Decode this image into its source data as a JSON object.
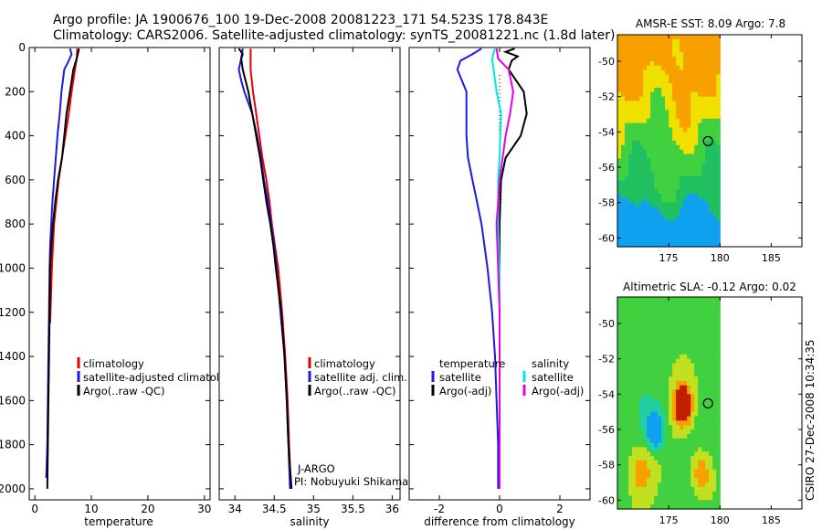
{
  "header": {
    "line1": "Argo profile: JA 1900676_100 19-Dec-2008 20081223_171 54.523S 178.843E",
    "line2": "Climatology: CARS2006. Satellite-adjusted climatology: synTS_20081221.nc (1.8d later)"
  },
  "credit": {
    "float_org": "J-ARGO",
    "pi": "PI: Nobuyuki Shikama",
    "stamp": "CSIRO 27-Dec-2008 10:34:35"
  },
  "colors": {
    "climatology": "#e60000",
    "satellite": "#1a1ae6",
    "argo": "#000000",
    "sat_salinity": "#00e6e6",
    "argo_salinity": "#e600e6"
  },
  "chart_data": [
    {
      "type": "line",
      "id": "temperature",
      "xlabel": "temperature",
      "ylabel": "",
      "xlim": [
        -1,
        31
      ],
      "ylim": [
        2050,
        0
      ],
      "xticks": [
        0,
        10,
        20,
        30
      ],
      "yticks": [
        0,
        200,
        400,
        600,
        800,
        1000,
        1200,
        1400,
        1600,
        1800,
        2000
      ],
      "legend": [
        "climatology",
        "satellite-adjusted climatology",
        "Argo(..raw -QC)"
      ],
      "series": [
        {
          "name": "climatology",
          "color": "climatology",
          "depth": [
            5,
            50,
            100,
            200,
            300,
            400,
            500,
            600,
            700,
            800,
            1000,
            1250
          ],
          "values": [
            7.5,
            7.4,
            7.1,
            6.5,
            6.0,
            5.4,
            4.8,
            4.2,
            3.8,
            3.4,
            3.0,
            2.7
          ]
        },
        {
          "name": "satellite-adjusted climatology",
          "color": "satellite",
          "depth": [
            5,
            30,
            60,
            100,
            200,
            300,
            400,
            500,
            600,
            700,
            800,
            900,
            1000,
            1200,
            1400,
            1600,
            1800,
            1950
          ],
          "values": [
            6.2,
            6.5,
            6.0,
            5.2,
            4.7,
            4.4,
            4.0,
            3.7,
            3.4,
            3.1,
            2.9,
            2.7,
            2.6,
            2.5,
            2.4,
            2.3,
            2.2,
            2.0
          ]
        },
        {
          "name": "Argo(..raw -QC)",
          "color": "argo",
          "depth": [
            5,
            30,
            50,
            100,
            200,
            300,
            400,
            500,
            600,
            700,
            800,
            900,
            1000,
            1200,
            1400,
            1600,
            1800,
            2000
          ],
          "values": [
            7.8,
            7.6,
            7.4,
            6.8,
            6.2,
            5.6,
            5.2,
            4.8,
            4.1,
            3.6,
            3.2,
            2.9,
            2.7,
            2.6,
            2.5,
            2.4,
            2.3,
            2.2
          ]
        }
      ]
    },
    {
      "type": "line",
      "id": "salinity",
      "xlabel": "salinity",
      "ylabel": "",
      "xlim": [
        33.8,
        36.1
      ],
      "ylim": [
        2050,
        0
      ],
      "xticks": [
        34,
        34.5,
        35,
        35.5,
        36
      ],
      "yticks": [
        0,
        200,
        400,
        600,
        800,
        1000,
        1200,
        1400,
        1600,
        1800,
        2000
      ],
      "legend": [
        "climatology",
        "satellite adj. clim.",
        "Argo(..raw -QC)"
      ],
      "series": [
        {
          "name": "climatology",
          "color": "climatology",
          "depth": [
            5,
            50,
            100,
            200,
            300,
            400,
            500,
            600,
            700,
            800,
            900,
            1000,
            1200,
            1400,
            1600,
            1800,
            2000
          ],
          "values": [
            34.2,
            34.2,
            34.2,
            34.23,
            34.27,
            34.31,
            34.35,
            34.4,
            34.44,
            34.47,
            34.51,
            34.55,
            34.6,
            34.64,
            34.67,
            34.69,
            34.71
          ]
        },
        {
          "name": "satellite adj. clim.",
          "color": "satellite",
          "depth": [
            5,
            50,
            100,
            150,
            200,
            300,
            400,
            500,
            600,
            700,
            800,
            900,
            1000,
            1200,
            1400,
            1600,
            1800,
            2000
          ],
          "values": [
            34.1,
            34.08,
            34.05,
            34.08,
            34.12,
            34.22,
            34.28,
            34.33,
            34.37,
            34.42,
            34.46,
            34.5,
            34.53,
            34.58,
            34.63,
            34.66,
            34.68,
            34.7
          ]
        },
        {
          "name": "Argo(..raw -QC)",
          "color": "argo",
          "depth": [
            5,
            30,
            50,
            100,
            200,
            300,
            400,
            500,
            600,
            700,
            800,
            900,
            1000,
            1200,
            1400,
            1600,
            1800,
            2000
          ],
          "values": [
            34.05,
            34.1,
            34.08,
            34.1,
            34.17,
            34.22,
            34.27,
            34.32,
            34.36,
            34.4,
            34.45,
            34.49,
            34.52,
            34.59,
            34.63,
            34.66,
            34.68,
            34.72
          ]
        }
      ]
    },
    {
      "type": "line",
      "id": "difference",
      "xlabel": "difference from climatology",
      "ylabel": "",
      "xlim": [
        -3,
        3
      ],
      "ylim": [
        2050,
        0
      ],
      "xticks": [
        -2,
        0,
        2
      ],
      "yticks": [
        0,
        200,
        400,
        600,
        800,
        1000,
        1200,
        1400,
        1600,
        1800,
        2000
      ],
      "legend_groups": [
        {
          "heading": "temperature",
          "items": [
            "satellite",
            "Argo(-adj)"
          ]
        },
        {
          "heading": "salinity",
          "items": [
            "satellite",
            "Argo(-adj)"
          ]
        }
      ],
      "series": [
        {
          "name": "satellite",
          "group": "temperature",
          "color": "satellite",
          "depth": [
            5,
            30,
            60,
            100,
            200,
            300,
            400,
            500,
            600,
            700,
            800,
            1000,
            1200,
            1400,
            1600,
            1800,
            2000
          ],
          "values": [
            -0.6,
            -0.9,
            -1.3,
            -1.4,
            -1.1,
            -1.1,
            -1.1,
            -1.05,
            -0.9,
            -0.75,
            -0.6,
            -0.4,
            -0.25,
            -0.15,
            -0.1,
            -0.05,
            -0.05
          ]
        },
        {
          "name": "Argo(-adj)",
          "group": "temperature",
          "color": "argo",
          "depth": [
            5,
            20,
            40,
            60,
            100,
            200,
            300,
            400,
            500,
            600,
            800,
            1000,
            1200,
            1400,
            1600,
            1800,
            2000
          ],
          "values": [
            0.5,
            0.2,
            0.6,
            0.4,
            0.3,
            0.8,
            0.9,
            0.7,
            0.2,
            0.05,
            0,
            0,
            0,
            0,
            0,
            0,
            0
          ]
        },
        {
          "name": "satellite",
          "group": "salinity",
          "color": "sat_salinity",
          "depth": [
            5,
            50,
            100,
            200,
            300,
            400,
            500,
            600,
            800,
            1000,
            1200,
            1400,
            1600,
            1800,
            2000
          ],
          "values": [
            -0.15,
            -0.25,
            -0.2,
            -0.1,
            0.05,
            0.02,
            0,
            -0.05,
            -0.05,
            0,
            0,
            0,
            0,
            0,
            0
          ]
        },
        {
          "name": "Argo(-adj)",
          "group": "salinity",
          "color": "argo_salinity",
          "depth": [
            5,
            50,
            100,
            200,
            300,
            400,
            500,
            600,
            800,
            1000,
            1200,
            1400,
            1600,
            1800,
            2000
          ],
          "values": [
            -0.1,
            -0.05,
            0.3,
            0.45,
            0.35,
            0.2,
            0.1,
            0,
            -0.1,
            -0.05,
            0,
            0,
            0,
            0,
            0
          ]
        }
      ]
    },
    {
      "type": "heatmap",
      "id": "sst_map",
      "title": "AMSR-E SST: 8.09 Argo: 7.8",
      "xlim": [
        170,
        188
      ],
      "ylim": [
        -60.5,
        -48.5
      ],
      "xticks": [
        175,
        180,
        185
      ],
      "yticks": [
        -50,
        -52,
        -54,
        -56,
        -58,
        -60
      ],
      "data_extent": {
        "lon": [
          170,
          180
        ],
        "lat": [
          -60.5,
          -48.5
        ]
      },
      "marker": {
        "lon": 178.843,
        "lat": -54.523
      }
    },
    {
      "type": "heatmap",
      "id": "sla_map",
      "title": "Altimetric SLA: -0.12 Argo: 0.02",
      "xlim": [
        170,
        188
      ],
      "ylim": [
        -60.5,
        -48.5
      ],
      "xticks": [
        175,
        180,
        185
      ],
      "yticks": [
        -50,
        -52,
        -54,
        -56,
        -58,
        -60
      ],
      "data_extent": {
        "lon": [
          170,
          180
        ],
        "lat": [
          -60.5,
          -48.5
        ]
      },
      "marker": {
        "lon": 178.843,
        "lat": -54.523
      }
    }
  ]
}
